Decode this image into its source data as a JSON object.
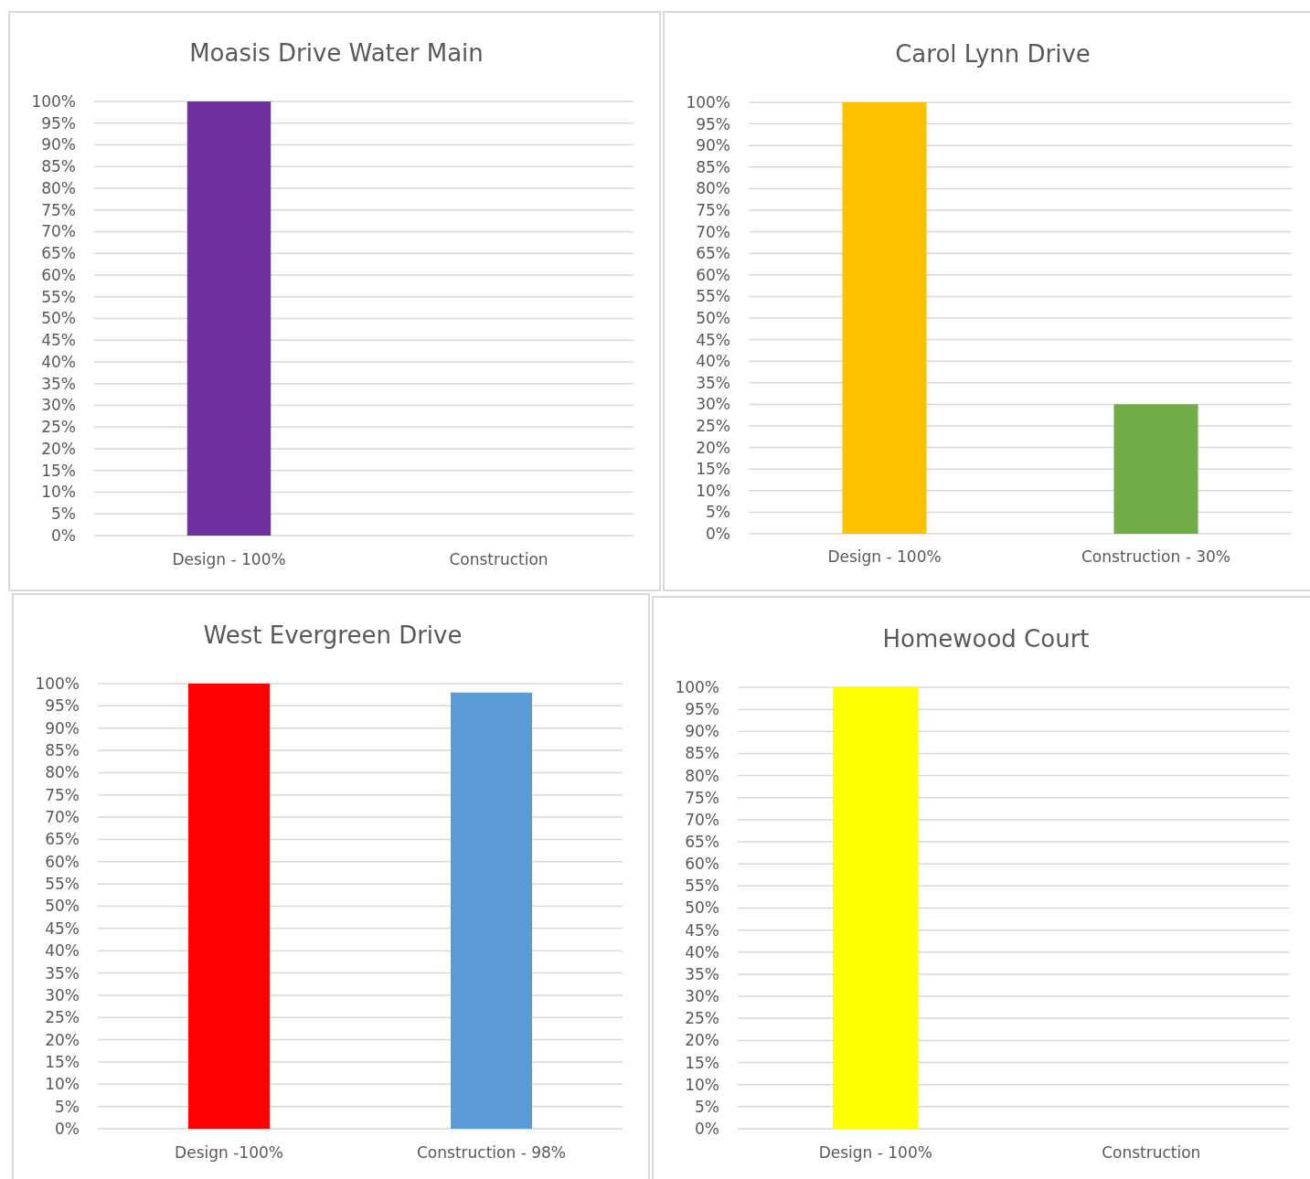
{
  "chart_data": [
    {
      "type": "bar",
      "title": "Moasis Drive Water Main",
      "categories": [
        "Design - 100%",
        "Construction"
      ],
      "values": [
        100,
        null
      ],
      "colors": [
        "#7030a0",
        null
      ],
      "ylim": [
        0,
        100
      ],
      "yticks": [
        {
          "value": 0,
          "label": "0%"
        },
        {
          "value": 5,
          "label": "5%"
        },
        {
          "value": 10,
          "label": "10%"
        },
        {
          "value": 15,
          "label": "15%"
        },
        {
          "value": 20,
          "label": "20%"
        },
        {
          "value": 25,
          "label": "25%"
        },
        {
          "value": 30,
          "label": "30%"
        },
        {
          "value": 35,
          "label": "35%"
        },
        {
          "value": 40,
          "label": "40%"
        },
        {
          "value": 45,
          "label": "45%"
        },
        {
          "value": 50,
          "label": "50%"
        },
        {
          "value": 55,
          "label": "55%"
        },
        {
          "value": 60,
          "label": "60%"
        },
        {
          "value": 65,
          "label": "65%"
        },
        {
          "value": 70,
          "label": "70%"
        },
        {
          "value": 75,
          "label": "75%"
        },
        {
          "value": 80,
          "label": "80%"
        },
        {
          "value": 85,
          "label": "85%"
        },
        {
          "value": 90,
          "label": "90%"
        },
        {
          "value": 95,
          "label": "95%"
        },
        {
          "value": 100,
          "label": "100%"
        }
      ],
      "grid": "y"
    },
    {
      "type": "bar",
      "title": "Carol Lynn Drive",
      "categories": [
        "Design - 100%",
        "Construction - 30%"
      ],
      "values": [
        100,
        30
      ],
      "colors": [
        "#ffc000",
        "#70ad47"
      ],
      "ylim": [
        0,
        100
      ],
      "yticks": [
        {
          "value": 0,
          "label": "0%"
        },
        {
          "value": 5,
          "label": "5%"
        },
        {
          "value": 10,
          "label": "10%"
        },
        {
          "value": 15,
          "label": "15%"
        },
        {
          "value": 20,
          "label": "20%"
        },
        {
          "value": 25,
          "label": "25%"
        },
        {
          "value": 30,
          "label": "30%"
        },
        {
          "value": 35,
          "label": "35%"
        },
        {
          "value": 40,
          "label": "40%"
        },
        {
          "value": 45,
          "label": "45%"
        },
        {
          "value": 50,
          "label": "50%"
        },
        {
          "value": 55,
          "label": "55%"
        },
        {
          "value": 60,
          "label": "60%"
        },
        {
          "value": 65,
          "label": "65%"
        },
        {
          "value": 70,
          "label": "70%"
        },
        {
          "value": 75,
          "label": "75%"
        },
        {
          "value": 80,
          "label": "80%"
        },
        {
          "value": 85,
          "label": "85%"
        },
        {
          "value": 90,
          "label": "90%"
        },
        {
          "value": 95,
          "label": "95%"
        },
        {
          "value": 100,
          "label": "100%"
        }
      ],
      "grid": "y"
    },
    {
      "type": "bar",
      "title": "West Evergreen Drive",
      "categories": [
        "Design -100%",
        "Construction - 98%"
      ],
      "values": [
        100,
        98
      ],
      "colors": [
        "#ff0000",
        "#5b9bd5"
      ],
      "ylim": [
        0,
        100
      ],
      "yticks": [
        {
          "value": 0,
          "label": "0%"
        },
        {
          "value": 5,
          "label": "5%"
        },
        {
          "value": 10,
          "label": "10%"
        },
        {
          "value": 15,
          "label": "15%"
        },
        {
          "value": 20,
          "label": "20%"
        },
        {
          "value": 25,
          "label": "25%"
        },
        {
          "value": 30,
          "label": "30%"
        },
        {
          "value": 35,
          "label": "35%"
        },
        {
          "value": 40,
          "label": "40%"
        },
        {
          "value": 45,
          "label": "45%"
        },
        {
          "value": 50,
          "label": "50%"
        },
        {
          "value": 55,
          "label": "55%"
        },
        {
          "value": 60,
          "label": "60%"
        },
        {
          "value": 65,
          "label": "65%"
        },
        {
          "value": 70,
          "label": "70%"
        },
        {
          "value": 75,
          "label": "75%"
        },
        {
          "value": 80,
          "label": "80%"
        },
        {
          "value": 85,
          "label": "85%"
        },
        {
          "value": 90,
          "label": "90%"
        },
        {
          "value": 95,
          "label": "95%"
        },
        {
          "value": 100,
          "label": "100%"
        }
      ],
      "grid": "y"
    },
    {
      "type": "bar",
      "title": "Homewood Court",
      "categories": [
        "Design - 100%",
        "Construction"
      ],
      "values": [
        100,
        null
      ],
      "colors": [
        "#ffff00",
        null
      ],
      "ylim": [
        0,
        100
      ],
      "yticks": [
        {
          "value": 0,
          "label": "0%"
        },
        {
          "value": 5,
          "label": "5%"
        },
        {
          "value": 10,
          "label": "10%"
        },
        {
          "value": 15,
          "label": "15%"
        },
        {
          "value": 20,
          "label": "20%"
        },
        {
          "value": 25,
          "label": "25%"
        },
        {
          "value": 30,
          "label": "30%"
        },
        {
          "value": 35,
          "label": "35%"
        },
        {
          "value": 40,
          "label": "40%"
        },
        {
          "value": 45,
          "label": "45%"
        },
        {
          "value": 50,
          "label": "50%"
        },
        {
          "value": 55,
          "label": "55%"
        },
        {
          "value": 60,
          "label": "60%"
        },
        {
          "value": 65,
          "label": "65%"
        },
        {
          "value": 70,
          "label": "70%"
        },
        {
          "value": 75,
          "label": "75%"
        },
        {
          "value": 80,
          "label": "80%"
        },
        {
          "value": 85,
          "label": "85%"
        },
        {
          "value": 90,
          "label": "90%"
        },
        {
          "value": 95,
          "label": "95%"
        },
        {
          "value": 100,
          "label": "100%"
        }
      ],
      "grid": "y"
    }
  ]
}
